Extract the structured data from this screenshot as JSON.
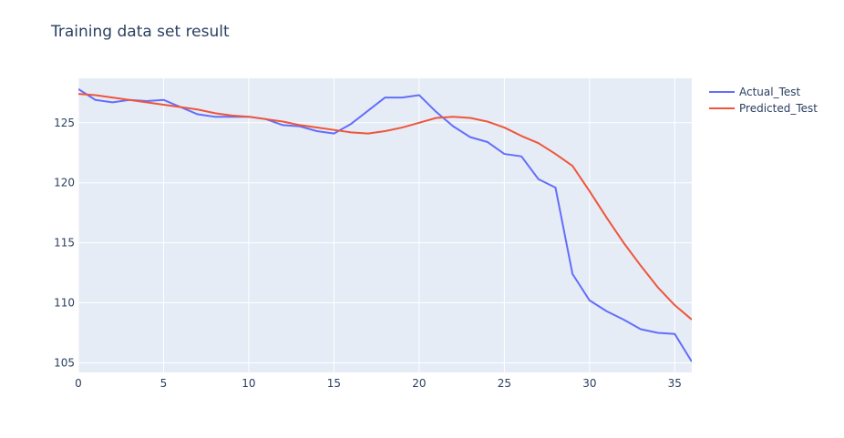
{
  "chart_data": {
    "type": "line",
    "title": "Training data set result",
    "xlabel": "",
    "ylabel": "",
    "xlim": [
      0,
      36
    ],
    "ylim": [
      104.2,
      128.7
    ],
    "x_ticks": [
      0,
      5,
      10,
      15,
      20,
      25,
      30,
      35
    ],
    "y_ticks": [
      105,
      110,
      115,
      120,
      125
    ],
    "grid": true,
    "legend_position": "top-right",
    "background": "#e5ecf6",
    "series": [
      {
        "name": "Actual_Test",
        "color": "#636efa",
        "x": [
          0,
          1,
          2,
          3,
          4,
          5,
          6,
          7,
          8,
          9,
          10,
          11,
          12,
          13,
          14,
          15,
          16,
          17,
          18,
          19,
          20,
          21,
          22,
          23,
          24,
          25,
          26,
          27,
          28,
          29,
          30,
          31,
          32,
          33,
          34,
          35,
          36
        ],
        "values": [
          127.8,
          126.9,
          126.7,
          126.9,
          126.8,
          126.9,
          126.3,
          125.7,
          125.5,
          125.5,
          125.5,
          125.3,
          124.8,
          124.7,
          124.3,
          124.1,
          124.9,
          126.0,
          127.1,
          127.1,
          127.3,
          125.9,
          124.7,
          123.8,
          123.4,
          122.4,
          122.2,
          120.3,
          119.6,
          112.4,
          110.2,
          109.3,
          108.6,
          107.8,
          107.5,
          107.4,
          105.1
        ]
      },
      {
        "name": "Predicted_Test",
        "color": "#ef553b",
        "x": [
          0,
          1,
          2,
          3,
          4,
          5,
          6,
          7,
          8,
          9,
          10,
          11,
          12,
          13,
          14,
          15,
          16,
          17,
          18,
          19,
          20,
          21,
          22,
          23,
          24,
          25,
          26,
          27,
          28,
          29,
          30,
          31,
          32,
          33,
          34,
          35,
          36
        ],
        "values": [
          127.4,
          127.3,
          127.1,
          126.9,
          126.7,
          126.5,
          126.3,
          126.1,
          125.8,
          125.6,
          125.5,
          125.3,
          125.1,
          124.8,
          124.6,
          124.4,
          124.2,
          124.1,
          124.3,
          124.6,
          125.0,
          125.4,
          125.5,
          125.4,
          125.1,
          124.6,
          123.9,
          123.3,
          122.4,
          121.4,
          119.3,
          117.1,
          115.0,
          113.1,
          111.3,
          109.8,
          108.6
        ]
      }
    ]
  }
}
